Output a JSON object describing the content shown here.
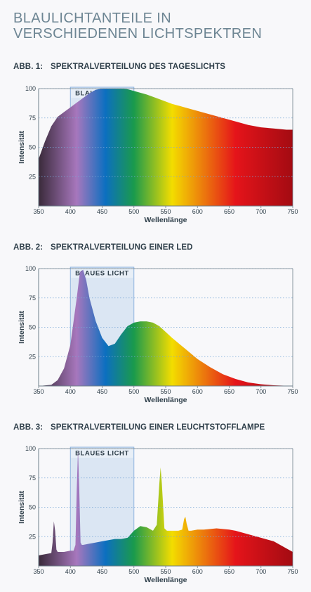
{
  "page": {
    "title_line1": "BLAULICHTANTEILE IN",
    "title_line2": "VERSCHIEDENEN LICHTSPEKTREN"
  },
  "colors": {
    "title": "#6d8593",
    "text": "#2f3f4a",
    "grid": "#7aa7d6",
    "band_fill": "#dbe6f3",
    "band_stroke": "#8fb4df",
    "axis": "#6e7f8a",
    "spectrum": [
      "#3a2a3a",
      "#a777bd",
      "#0c6fc0",
      "#1a9a4c",
      "#f3dd00",
      "#e5141a",
      "#a30b12"
    ]
  },
  "chart_data": [
    {
      "type": "area",
      "label": "ABB. 1:",
      "title": "SPEKTRALVERTEILUNG DES TAGESLICHTS",
      "xlabel": "Wellenlänge",
      "ylabel": "Intensität",
      "xlim": [
        350,
        750
      ],
      "ylim": [
        0,
        100
      ],
      "xticks": [
        350,
        400,
        450,
        500,
        550,
        600,
        650,
        700,
        750
      ],
      "yticks": [
        25,
        50,
        75,
        100
      ],
      "highlight": {
        "label": "BLAUES LICHT",
        "from": 400,
        "to": 500
      },
      "x": [
        350,
        360,
        370,
        380,
        390,
        400,
        410,
        420,
        430,
        440,
        450,
        460,
        470,
        480,
        490,
        500,
        520,
        540,
        560,
        580,
        600,
        620,
        640,
        660,
        680,
        700,
        720,
        740,
        750
      ],
      "values": [
        40,
        55,
        68,
        76,
        80,
        84,
        88,
        92,
        96,
        99,
        100,
        100,
        100,
        100,
        99.5,
        98,
        95,
        91,
        87,
        84,
        81,
        78,
        75,
        72,
        69,
        67,
        66,
        65,
        65
      ]
    },
    {
      "type": "area",
      "label": "ABB. 2:",
      "title": "SPEKTRALVERTEILUNG EINER LED",
      "xlabel": "Wellenlänge",
      "ylabel": "Intensität",
      "xlim": [
        350,
        750
      ],
      "ylim": [
        0,
        100
      ],
      "xticks": [
        350,
        400,
        450,
        500,
        550,
        600,
        650,
        700,
        750
      ],
      "yticks": [
        25,
        50,
        75,
        100
      ],
      "highlight": {
        "label": "BLAUES LICHT",
        "from": 400,
        "to": 500
      },
      "x": [
        350,
        370,
        380,
        390,
        400,
        405,
        410,
        415,
        420,
        425,
        430,
        440,
        450,
        460,
        470,
        480,
        490,
        500,
        510,
        520,
        530,
        540,
        550,
        560,
        580,
        600,
        620,
        640,
        660,
        680,
        700,
        720,
        740,
        750
      ],
      "values": [
        0,
        1,
        5,
        15,
        35,
        55,
        75,
        97,
        99,
        90,
        75,
        55,
        41,
        34,
        36,
        44,
        51,
        54,
        55,
        55,
        54,
        51,
        46,
        41,
        32,
        23,
        16,
        10,
        6,
        3,
        1.5,
        0.6,
        0.2,
        0
      ]
    },
    {
      "type": "area",
      "label": "ABB. 3:",
      "title": "SPEKTRALVERTEILUNG EINER LEUCHTSTOFFLAMPE",
      "xlabel": "Wellenlänge",
      "ylabel": "Intensität",
      "xlim": [
        350,
        750
      ],
      "ylim": [
        0,
        100
      ],
      "xticks": [
        350,
        400,
        450,
        500,
        550,
        600,
        650,
        700,
        750
      ],
      "yticks": [
        25,
        50,
        75,
        100
      ],
      "highlight": {
        "label": "BLAUES LICHT",
        "from": 400,
        "to": 500
      },
      "x": [
        350,
        360,
        370,
        372,
        374,
        376,
        378,
        380,
        390,
        400,
        405,
        408,
        410,
        412,
        414,
        416,
        418,
        420,
        430,
        440,
        450,
        460,
        470,
        480,
        490,
        500,
        510,
        520,
        530,
        536,
        540,
        542,
        544,
        548,
        552,
        560,
        570,
        576,
        579,
        581,
        583,
        586,
        590,
        600,
        610,
        620,
        630,
        640,
        650,
        660,
        680,
        700,
        720,
        740,
        750
      ],
      "values": [
        9,
        10,
        11,
        20,
        38,
        30,
        14,
        12,
        12,
        13,
        13,
        18,
        65,
        99,
        65,
        20,
        18,
        18,
        19,
        20,
        21,
        22,
        23,
        23,
        24,
        30,
        34,
        33,
        30,
        35,
        70,
        84,
        70,
        32,
        30,
        30,
        30,
        31,
        40,
        42,
        36,
        30,
        30,
        31,
        31,
        31.5,
        32,
        31.5,
        31,
        30,
        27,
        24,
        21,
        15,
        12
      ]
    }
  ]
}
